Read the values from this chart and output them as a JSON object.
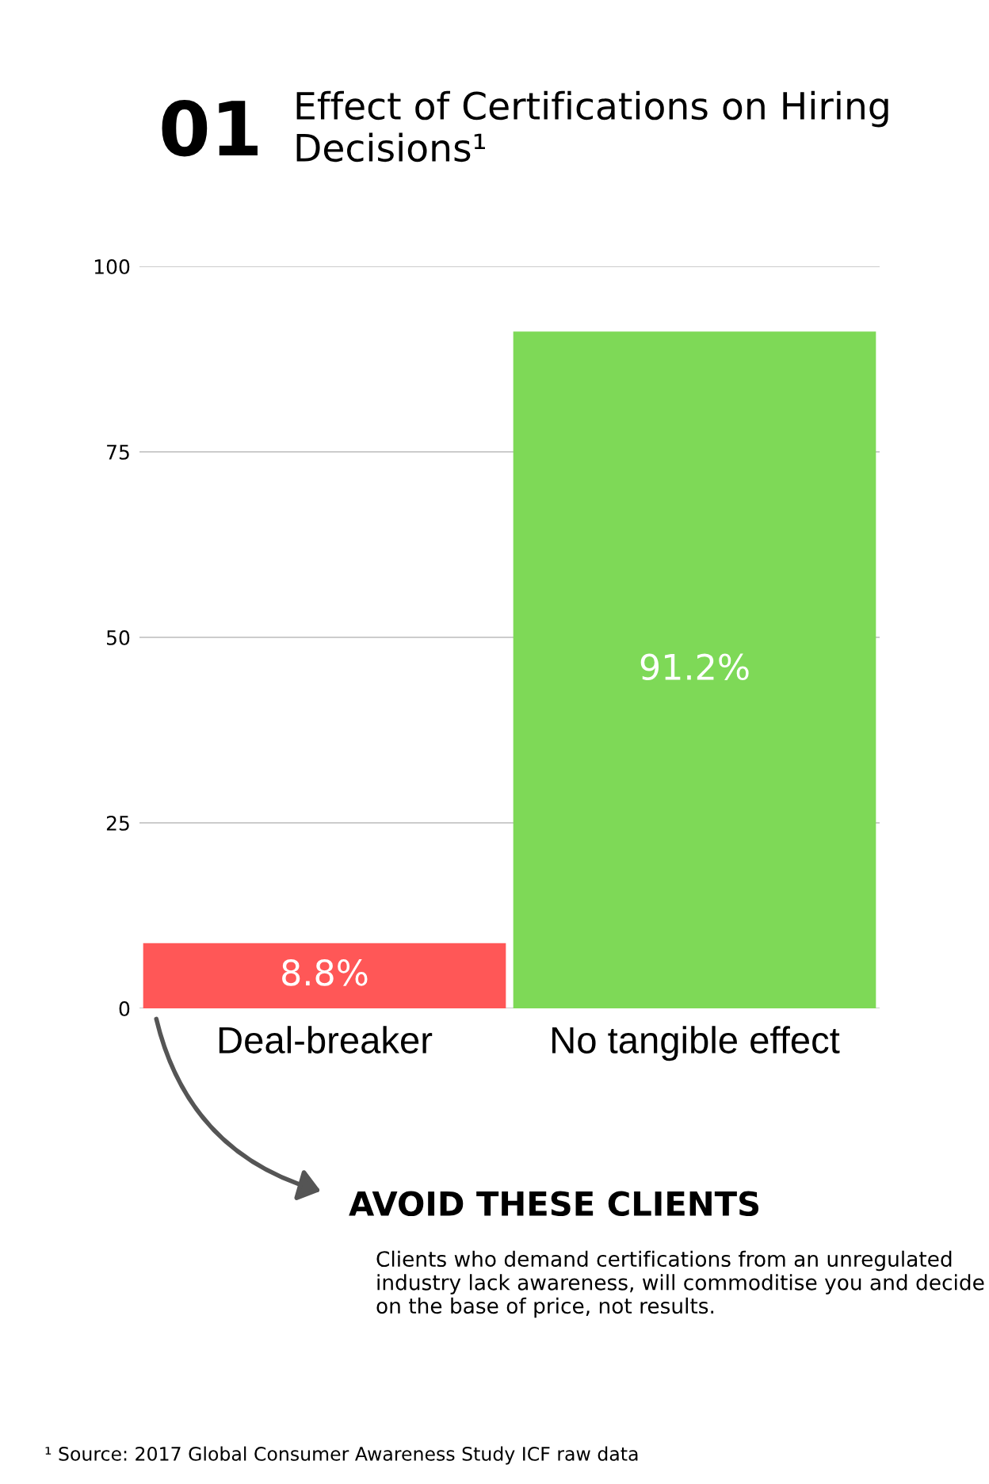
{
  "chart_data": {
    "type": "bar",
    "title": "Effect of Certifications on Hiring Decisions¹",
    "categories": [
      "Deal-breaker",
      "No tangible effect"
    ],
    "values": [
      8.8,
      91.2
    ],
    "colors": [
      "#ff5757",
      "#7ed957"
    ],
    "value_labels": [
      "8.8%",
      "91.2%"
    ],
    "ylim": [
      0,
      100
    ],
    "yticks": [
      0,
      25,
      50,
      75,
      100
    ],
    "grid": "y",
    "annotations": [
      "01",
      "AVOID THESE CLIENTS",
      "Clients who demand certifications from an unregulated industry lack awareness, will commoditise you and decide on the base of price, not results.",
      "¹ Source: 2017 Global Consumer Awareness Study ICF raw data"
    ]
  }
}
